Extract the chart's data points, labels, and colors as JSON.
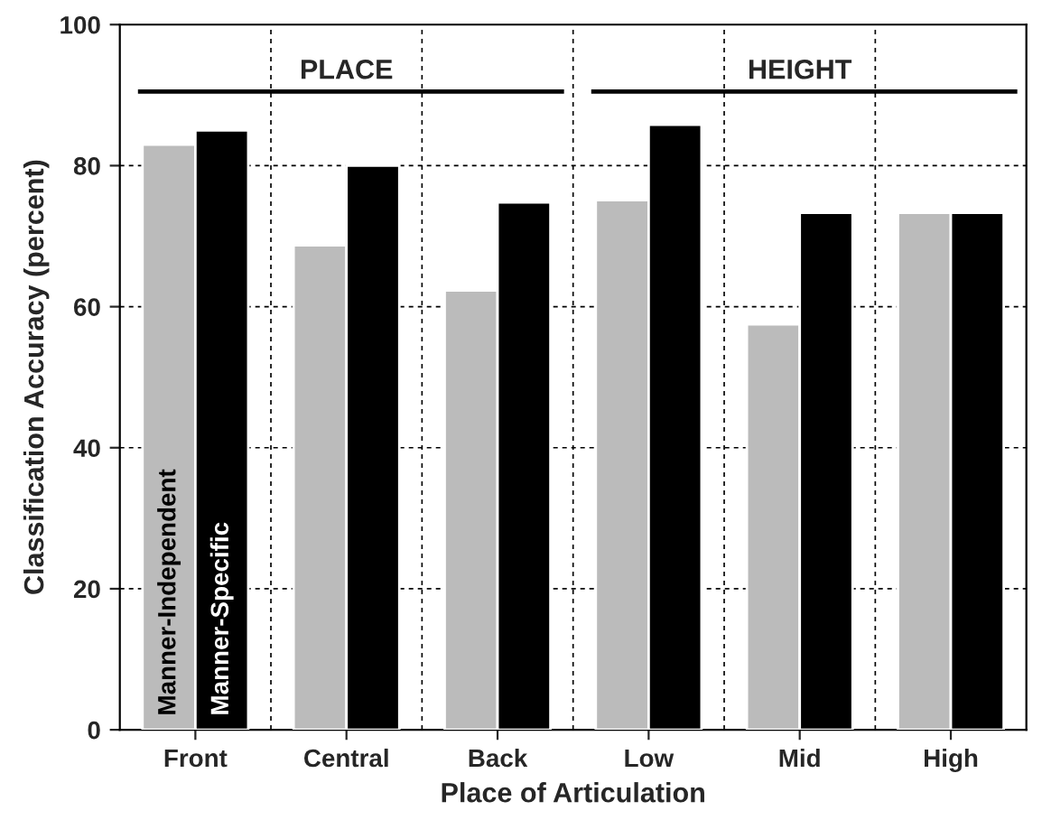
{
  "chart_data": {
    "type": "bar",
    "xlabel": "Place of Articulation",
    "ylabel": "Classification Accuracy (percent)",
    "categories": [
      "Front",
      "Central",
      "Back",
      "Low",
      "Mid",
      "High"
    ],
    "series": [
      {
        "name": "Manner-Independent",
        "color": "#bbbbbb",
        "values": [
          83,
          68.7,
          62.3,
          75.1,
          57.5,
          73.3
        ]
      },
      {
        "name": "Manner-Specific",
        "color": "#000000",
        "values": [
          85,
          80,
          74.8,
          85.8,
          73.3,
          73.3
        ]
      }
    ],
    "ylim": [
      0,
      100
    ],
    "yticks": [
      0,
      20,
      40,
      60,
      80,
      100
    ],
    "grid": true,
    "legend": false,
    "annotations": [
      "PLACE",
      "HEIGHT"
    ]
  }
}
